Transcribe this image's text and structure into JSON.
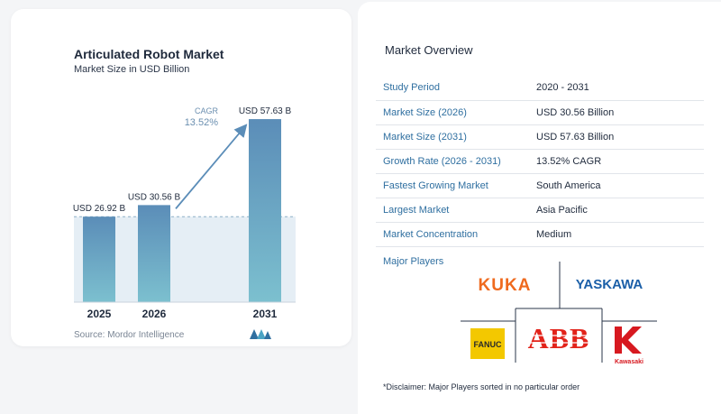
{
  "chart_data": {
    "type": "bar",
    "title": "Articulated Robot Market",
    "subtitle": "Market Size in USD Billion",
    "categories": [
      "2025",
      "2026",
      "2031"
    ],
    "values": [
      26.92,
      30.56,
      57.63
    ],
    "value_labels": [
      "USD 26.92 B",
      "USD 30.56 B",
      "USD 57.63 B"
    ],
    "cagr_label": "CAGR",
    "cagr_value": "13.52%",
    "ylim": [
      0,
      58.5
    ],
    "colors": {
      "bar_top": "#5b8db8",
      "bar_bottom": "#7cc0cf",
      "band": "#dce8f2",
      "arrow": "#5b8db8"
    }
  },
  "source": "Source:  Mordor Intelligence",
  "overview": {
    "title": "Market Overview",
    "rows": [
      {
        "key": "Study Period",
        "value": "2020 - 2031"
      },
      {
        "key": "Market Size (2026)",
        "value": "USD 30.56 Billion"
      },
      {
        "key": "Market Size (2031)",
        "value": "USD 57.63 Billion"
      },
      {
        "key": "Growth Rate (2026 - 2031)",
        "value": "13.52% CAGR"
      },
      {
        "key": "Fastest Growing Market",
        "value": "South America"
      },
      {
        "key": "Largest Market",
        "value": "Asia Pacific"
      },
      {
        "key": "Market Concentration",
        "value": "Medium"
      }
    ]
  },
  "players": {
    "label": "Major Players",
    "kuka": "KUKA",
    "yaskawa": "YASKAWA",
    "fanuc": "FANUC",
    "abb": "ABB",
    "kawasaki": "Kawasaki"
  },
  "disclaimer": "*Disclaimer: Major Players sorted in no particular order"
}
